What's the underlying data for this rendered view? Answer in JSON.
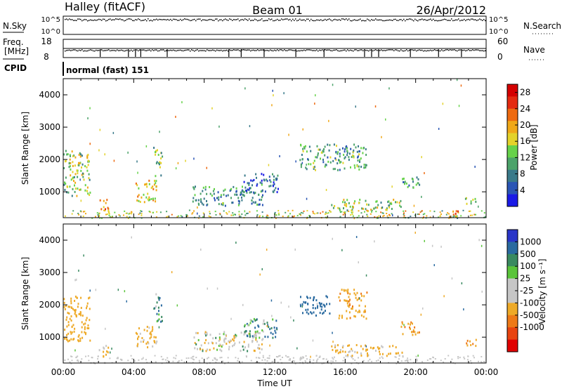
{
  "header": {
    "station": "Halley (fitACF)",
    "beam": "Beam 01",
    "date": "26/Apr/2012"
  },
  "top_panels": {
    "nsky_label": "N.Sky",
    "nsky_ticks": [
      "10^5",
      "10^0"
    ],
    "nsearch_label": "N.Search",
    "nsearch_ticks": [
      "10^5",
      "10^0"
    ],
    "freq_label": "Freq.",
    "freq_unit": "[MHz]",
    "freq_ticks": [
      "18",
      "8"
    ],
    "nave_label": "Nave",
    "nave_ticks": [
      "60",
      "0"
    ],
    "cpid_label": "CPID",
    "cpid_value": "normal (fast) 151"
  },
  "colors": {
    "power_scale": [
      "#1a1ae6",
      "#2a55b5",
      "#3a7a8a",
      "#4ca36a",
      "#66d24a",
      "#e3d22a",
      "#f0a818",
      "#ee6a10",
      "#e42a10",
      "#d40000"
    ],
    "velocity_scale": [
      "#2a35c8",
      "#2a6aa0",
      "#3a8a60",
      "#5ac43a",
      "#c6c6c6",
      "#c6c6c6",
      "#eeaa28",
      "#ee7a18",
      "#e84410",
      "#e00000"
    ]
  },
  "chart_data": [
    {
      "type": "heatmap",
      "name": "power",
      "xlabel": "",
      "ylabel": "Slant Range [km]",
      "xlim": [
        0,
        24
      ],
      "ylim": [
        200,
        4500
      ],
      "yticks": [
        "1000",
        "2000",
        "3000",
        "4000"
      ],
      "xticks": [],
      "colorbar_label": "Power [dB]",
      "colorbar_ticks": [
        "4",
        "8",
        "12",
        "16",
        "20",
        "24",
        "28"
      ],
      "colorbar_range": [
        0,
        30
      ],
      "regions": [
        {
          "t0": 0.0,
          "t1": 1.5,
          "r0": 900,
          "r1": 2300,
          "level": 14
        },
        {
          "t0": 2.0,
          "t1": 2.6,
          "r0": 400,
          "r1": 800,
          "level": 20
        },
        {
          "t0": 4.1,
          "t1": 5.3,
          "r0": 700,
          "r1": 1400,
          "level": 18
        },
        {
          "t0": 5.1,
          "t1": 5.6,
          "r0": 1500,
          "r1": 2400,
          "level": 12
        },
        {
          "t0": 7.3,
          "t1": 11.3,
          "r0": 600,
          "r1": 1200,
          "level": 9
        },
        {
          "t0": 10.2,
          "t1": 12.2,
          "r0": 1000,
          "r1": 1600,
          "level": 7
        },
        {
          "t0": 13.4,
          "t1": 17.2,
          "r0": 1700,
          "r1": 2500,
          "level": 10
        },
        {
          "t0": 15.2,
          "t1": 19.2,
          "r0": 450,
          "r1": 800,
          "level": 14
        },
        {
          "t0": 19.1,
          "t1": 20.2,
          "r0": 1100,
          "r1": 1500,
          "level": 10
        },
        {
          "t0": 21.5,
          "t1": 22.4,
          "r0": 250,
          "r1": 450,
          "level": 20
        },
        {
          "t0": 22.8,
          "t1": 23.4,
          "r0": 650,
          "r1": 950,
          "level": 12
        }
      ]
    },
    {
      "type": "heatmap",
      "name": "velocity",
      "xlabel": "Time UT",
      "ylabel": "Slant Range [km]",
      "xlim": [
        0,
        24
      ],
      "ylim": [
        200,
        4500
      ],
      "yticks": [
        "1000",
        "2000",
        "3000",
        "4000"
      ],
      "xticks": [
        "00:00",
        "04:00",
        "08:00",
        "12:00",
        "16:00",
        "20:00",
        "00:00"
      ],
      "colorbar_label": "Velocity [m s⁻¹]",
      "colorbar_ticks": [
        "1000",
        "500",
        "100",
        "25",
        "-25",
        "-100",
        "-500",
        "-1000"
      ],
      "colorbar_range": [
        -1000,
        1000
      ],
      "regions": [
        {
          "t0": 0.0,
          "t1": 1.5,
          "r0": 900,
          "r1": 2300,
          "level": -300
        },
        {
          "t0": 2.0,
          "t1": 2.6,
          "r0": 400,
          "r1": 800,
          "level": -120
        },
        {
          "t0": 4.1,
          "t1": 5.3,
          "r0": 700,
          "r1": 1400,
          "level": -150
        },
        {
          "t0": 5.1,
          "t1": 5.6,
          "r0": 1500,
          "r1": 2400,
          "level": 80
        },
        {
          "t0": 7.3,
          "t1": 11.3,
          "r0": 600,
          "r1": 1200,
          "level": -60
        },
        {
          "t0": 10.2,
          "t1": 12.2,
          "r0": 1000,
          "r1": 1600,
          "level": 60
        },
        {
          "t0": 13.4,
          "t1": 15.2,
          "r0": 1700,
          "r1": 2300,
          "level": 200
        },
        {
          "t0": 15.6,
          "t1": 17.2,
          "r0": 1600,
          "r1": 2500,
          "level": -400
        },
        {
          "t0": 15.2,
          "t1": 19.2,
          "r0": 450,
          "r1": 800,
          "level": -150
        },
        {
          "t0": 19.1,
          "t1": 20.2,
          "r0": 1100,
          "r1": 1500,
          "level": -500
        },
        {
          "t0": 22.8,
          "t1": 23.4,
          "r0": 650,
          "r1": 950,
          "level": -500
        }
      ]
    }
  ]
}
